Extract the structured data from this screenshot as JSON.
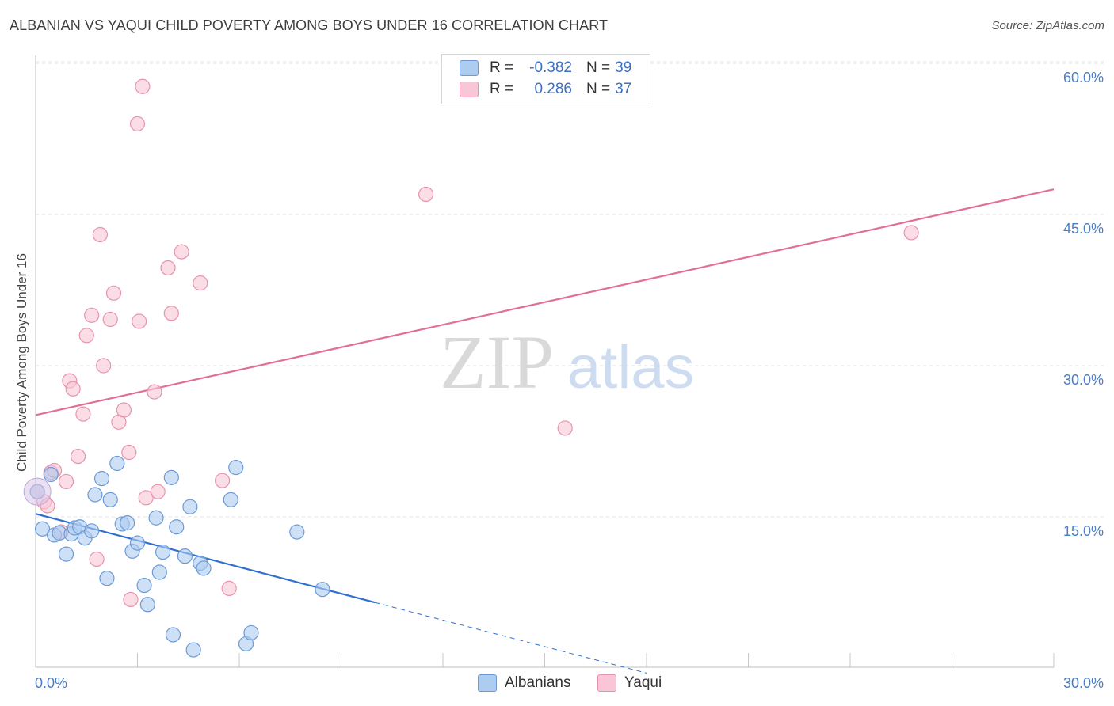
{
  "title": "ALBANIAN VS YAQUI CHILD POVERTY AMONG BOYS UNDER 16 CORRELATION CHART",
  "source": "Source: ZipAtlas.com",
  "watermark": {
    "zip": "ZIP",
    "atlas": "atlas"
  },
  "legend": {
    "r_label": "R =",
    "n_label": "N =",
    "rows": [
      {
        "r": "-0.382",
        "n": "39"
      },
      {
        "r": "0.286",
        "n": "37"
      }
    ]
  },
  "colors": {
    "albanians_fill": "#aecbf0",
    "albanians_stroke": "#6c9ad8",
    "albanians_line": "#2f6fcf",
    "yaqui_fill": "#f8c6d6",
    "yaqui_stroke": "#e793b0",
    "yaqui_line": "#e16f98",
    "tick_text": "#4a7cc8",
    "grid": "#e2e2e2"
  },
  "chart_data": {
    "type": "scatter",
    "title": "ALBANIAN VS YAQUI CHILD POVERTY AMONG BOYS UNDER 16 CORRELATION CHART",
    "xlabel": "",
    "ylabel": "Child Poverty Among Boys Under 16",
    "xlim": [
      0,
      30
    ],
    "ylim": [
      0,
      62
    ],
    "x_tick_labels": [
      "0.0%",
      "30.0%"
    ],
    "y_ticks": [
      15,
      30,
      45,
      60
    ],
    "y_tick_labels": [
      "15.0%",
      "30.0%",
      "45.0%",
      "60.0%"
    ],
    "grid": true,
    "legend_position": "bottom",
    "series": [
      {
        "name": "Albanians",
        "r": -0.382,
        "n": 39,
        "trend": {
          "x0": 0,
          "y0": 15.3,
          "x1": 10,
          "y1": 6.5,
          "dashed_to_x": 18,
          "dashed_to_y": -0.5
        },
        "points": [
          [
            0.05,
            17.5
          ],
          [
            0.2,
            13.8
          ],
          [
            0.45,
            19.2
          ],
          [
            0.55,
            13.2
          ],
          [
            0.7,
            13.4
          ],
          [
            0.9,
            11.3
          ],
          [
            1.05,
            13.3
          ],
          [
            1.15,
            13.9
          ],
          [
            1.3,
            14.0
          ],
          [
            1.45,
            12.9
          ],
          [
            1.65,
            13.6
          ],
          [
            1.75,
            17.2
          ],
          [
            1.95,
            18.8
          ],
          [
            2.1,
            8.9
          ],
          [
            2.2,
            16.7
          ],
          [
            2.4,
            20.3
          ],
          [
            2.55,
            14.3
          ],
          [
            2.7,
            14.4
          ],
          [
            2.85,
            11.6
          ],
          [
            3.0,
            12.4
          ],
          [
            3.2,
            8.2
          ],
          [
            3.3,
            6.3
          ],
          [
            3.55,
            14.9
          ],
          [
            3.65,
            9.5
          ],
          [
            3.75,
            11.5
          ],
          [
            4.0,
            18.9
          ],
          [
            4.05,
            3.3
          ],
          [
            4.15,
            14.0
          ],
          [
            4.4,
            11.1
          ],
          [
            4.55,
            16.0
          ],
          [
            4.65,
            1.8
          ],
          [
            4.85,
            10.4
          ],
          [
            4.95,
            9.9
          ],
          [
            5.75,
            16.7
          ],
          [
            5.9,
            19.9
          ],
          [
            6.2,
            2.4
          ],
          [
            6.35,
            3.5
          ],
          [
            7.7,
            13.5
          ],
          [
            8.45,
            7.8
          ]
        ]
      },
      {
        "name": "Yaqui",
        "r": 0.286,
        "n": 37,
        "trend": {
          "x0": 0,
          "y0": 25.1,
          "x1": 30,
          "y1": 47.5
        },
        "points": [
          [
            0.05,
            17.5
          ],
          [
            0.25,
            16.5
          ],
          [
            0.35,
            16.1
          ],
          [
            0.45,
            19.4
          ],
          [
            0.55,
            19.6
          ],
          [
            0.75,
            13.5
          ],
          [
            0.9,
            18.5
          ],
          [
            1.0,
            28.5
          ],
          [
            1.1,
            27.7
          ],
          [
            1.25,
            21.0
          ],
          [
            1.4,
            25.2
          ],
          [
            1.5,
            33.0
          ],
          [
            1.65,
            35.0
          ],
          [
            1.8,
            10.8
          ],
          [
            1.9,
            43.0
          ],
          [
            2.0,
            30.0
          ],
          [
            2.2,
            34.6
          ],
          [
            2.3,
            37.2
          ],
          [
            2.45,
            24.4
          ],
          [
            2.6,
            25.6
          ],
          [
            2.75,
            21.4
          ],
          [
            2.8,
            6.8
          ],
          [
            3.0,
            54.0
          ],
          [
            3.05,
            34.4
          ],
          [
            3.15,
            57.7
          ],
          [
            3.25,
            16.9
          ],
          [
            3.5,
            27.4
          ],
          [
            3.6,
            17.5
          ],
          [
            3.9,
            39.7
          ],
          [
            4.0,
            35.2
          ],
          [
            4.3,
            41.3
          ],
          [
            4.85,
            38.2
          ],
          [
            5.5,
            18.6
          ],
          [
            5.7,
            7.9
          ],
          [
            11.5,
            47.0
          ],
          [
            15.6,
            23.8
          ],
          [
            25.8,
            43.2
          ]
        ]
      }
    ]
  }
}
